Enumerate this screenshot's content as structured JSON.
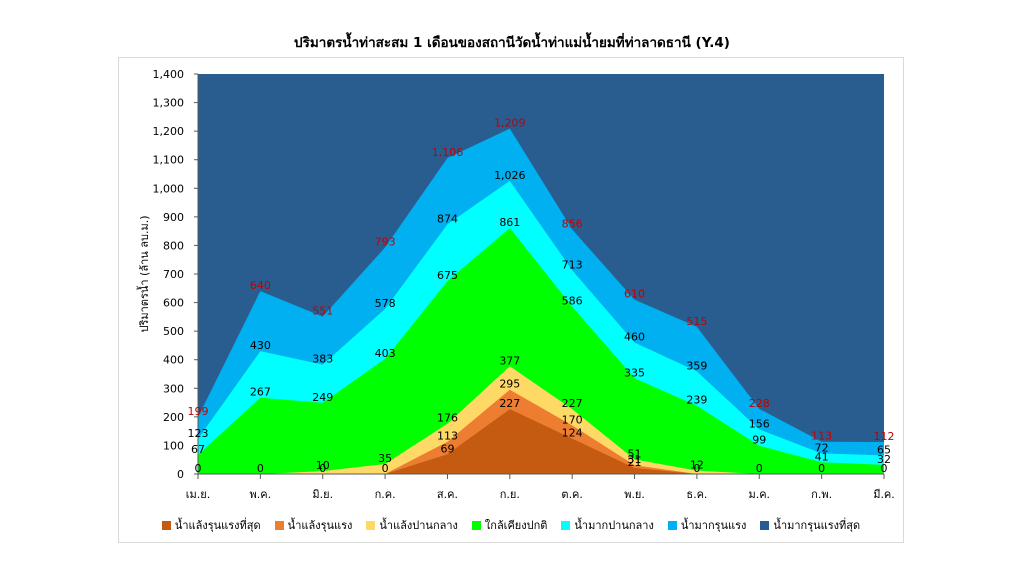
{
  "chart_data": {
    "type": "area",
    "title": "ปริมาตรน้ำท่าสะสม 1 เดือนของสถานีวัดน้ำท่าแม่น้ำยมที่ท่าลาดธานี (Y.4)",
    "ylabel": "ปริมาตรน้ำ (ล้าน ลบ.ม.)",
    "xlabel": "",
    "ylim": [
      0,
      1400
    ],
    "yticks": [
      "0",
      "100",
      "200",
      "300",
      "400",
      "500",
      "600",
      "700",
      "800",
      "900",
      "1,000",
      "1,100",
      "1,200",
      "1,300",
      "1,400"
    ],
    "categories": [
      "เม.ย.",
      "พ.ค.",
      "มิ.ย.",
      "ก.ค.",
      "ส.ค.",
      "ก.ย.",
      "ต.ค.",
      "พ.ย.",
      "ธ.ค.",
      "ม.ค.",
      "ก.พ.",
      "มี.ค."
    ],
    "series": [
      {
        "name": "น้ำแล้งรุนแรงที่สุด",
        "color": "#C55A11",
        "values": [
          0,
          0,
          0,
          0,
          69,
          227,
          124,
          21,
          0,
          0,
          0,
          0
        ],
        "labels": [
          "0",
          "0",
          "0",
          "0",
          "69",
          "227",
          "124",
          "21",
          "0",
          "0",
          "0",
          "0"
        ]
      },
      {
        "name": "น้ำแล้งรุนแรง",
        "color": "#ED7D31",
        "values": [
          0,
          0,
          0,
          0,
          113,
          295,
          170,
          31,
          0,
          0,
          0,
          0
        ],
        "labels": [
          "",
          "",
          "",
          "",
          "113",
          "295",
          "170",
          "31",
          "",
          "",
          "",
          ""
        ]
      },
      {
        "name": "น้ำแล้งปานกลาง",
        "color": "#FFD966",
        "values": [
          0,
          0,
          10,
          35,
          176,
          377,
          227,
          51,
          12,
          0,
          0,
          0
        ],
        "labels": [
          "",
          "",
          "10",
          "35",
          "176",
          "377",
          "227",
          "51",
          "12",
          "",
          "",
          ""
        ]
      },
      {
        "name": "ใกล้เคียงปกติ",
        "color": "#00FF00",
        "values": [
          67,
          267,
          249,
          403,
          675,
          861,
          586,
          335,
          239,
          99,
          41,
          32
        ],
        "labels": [
          "67",
          "267",
          "249",
          "403",
          "675",
          "861",
          "586",
          "335",
          "239",
          "99",
          "41",
          "32"
        ]
      },
      {
        "name": "น้ำมากปานกลาง",
        "color": "#00FFFF",
        "values": [
          123,
          430,
          383,
          578,
          874,
          1026,
          713,
          460,
          359,
          156,
          72,
          65
        ],
        "labels": [
          "123",
          "430",
          "383",
          "578",
          "874",
          "1,026",
          "713",
          "460",
          "359",
          "156",
          "72",
          "65"
        ]
      },
      {
        "name": "น้ำมากรุนแรง",
        "color": "#00B0F0",
        "values": [
          199,
          640,
          551,
          793,
          1106,
          1209,
          856,
          610,
          515,
          228,
          113,
          112
        ],
        "labels": [
          "199",
          "640",
          "551",
          "793",
          "1,106",
          "1,209",
          "856",
          "610",
          "515",
          "228",
          "113",
          "112"
        ]
      },
      {
        "name": "น้ำมากรุนแรงที่สุด",
        "color": "#2A5D8F",
        "values": [
          1400,
          1400,
          1400,
          1400,
          1400,
          1400,
          1400,
          1400,
          1400,
          1400,
          1400,
          1400
        ],
        "labels": []
      }
    ],
    "label_colors": {
      "default": "#000000",
      "top": "#C00000"
    },
    "grid": false,
    "legend": "bottom"
  }
}
